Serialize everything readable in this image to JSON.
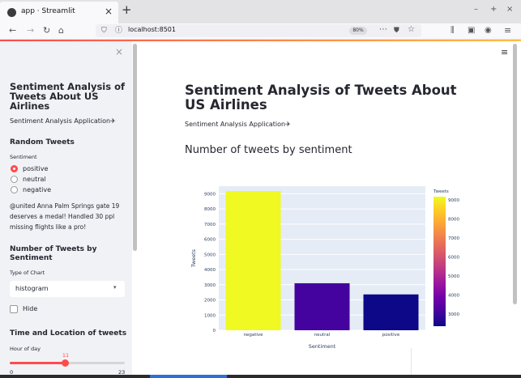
{
  "browser": {
    "tab_title": "app · Streamlit",
    "tab_close": "×",
    "new_tab": "+",
    "url": "localhost:8501",
    "zoom": "80%",
    "window_controls": [
      "–",
      "+",
      "×"
    ],
    "icons": [
      "back-icon",
      "forward-icon",
      "reload-icon",
      "home-icon",
      "shield-icon",
      "info-icon",
      "more-icon",
      "pocket-icon",
      "bookmark-star-icon",
      "library-icon",
      "sidebar-icon",
      "account-icon",
      "menu-icon"
    ]
  },
  "sidebar": {
    "close": "×",
    "title": "Sentiment Analysis of Tweets About US Airlines",
    "subtitle": "Sentiment Analysis Application✈",
    "random_tweets": {
      "heading": "Random Tweets",
      "label": "Sentiment",
      "options": [
        "positive",
        "neutral",
        "negative"
      ],
      "selected": "positive",
      "tweet": "@united Anna Palm Springs gate 19 deserves a medal! Handled 30 ppl missing flights like a pro!"
    },
    "number_of_tweets": {
      "heading": "Number of Tweets by Sentiment",
      "label": "Type of Chart",
      "selected": "histogram",
      "hide_label": "Hide"
    },
    "time_location": {
      "heading": "Time and Location of tweets",
      "label": "Hour of day",
      "value": 11,
      "min": 0,
      "max": 23,
      "value_text": "11",
      "min_text": "0",
      "max_text": "23"
    }
  },
  "main": {
    "menu": "≡",
    "title": "Sentiment Analysis of Tweets About US Airlines",
    "subtitle": "Sentiment Analysis Application✈",
    "section_title": "Number of tweets by sentiment"
  },
  "chart_data": {
    "type": "bar",
    "categories": [
      "negative",
      "neutral",
      "positive"
    ],
    "values": [
      9178,
      3099,
      2363
    ],
    "xlabel": "Sentiment",
    "ylabel": "Tweets",
    "ylim": [
      0,
      9500
    ],
    "yticks": [
      0,
      1000,
      2000,
      3000,
      4000,
      5000,
      6000,
      7000,
      8000,
      9000
    ],
    "colorbar": {
      "title": "Tweets",
      "ticks": [
        3000,
        4000,
        5000,
        6000,
        7000,
        8000,
        9000
      ],
      "range": [
        2363,
        9178
      ],
      "colorscale": [
        "#0d0887",
        "#46039f",
        "#7201a8",
        "#9c179e",
        "#bd3786",
        "#d8576b",
        "#ed7953",
        "#fb9f3a",
        "#fdca26",
        "#f0f921"
      ]
    },
    "grid": true,
    "plot_bg": "#e5ecf6"
  }
}
